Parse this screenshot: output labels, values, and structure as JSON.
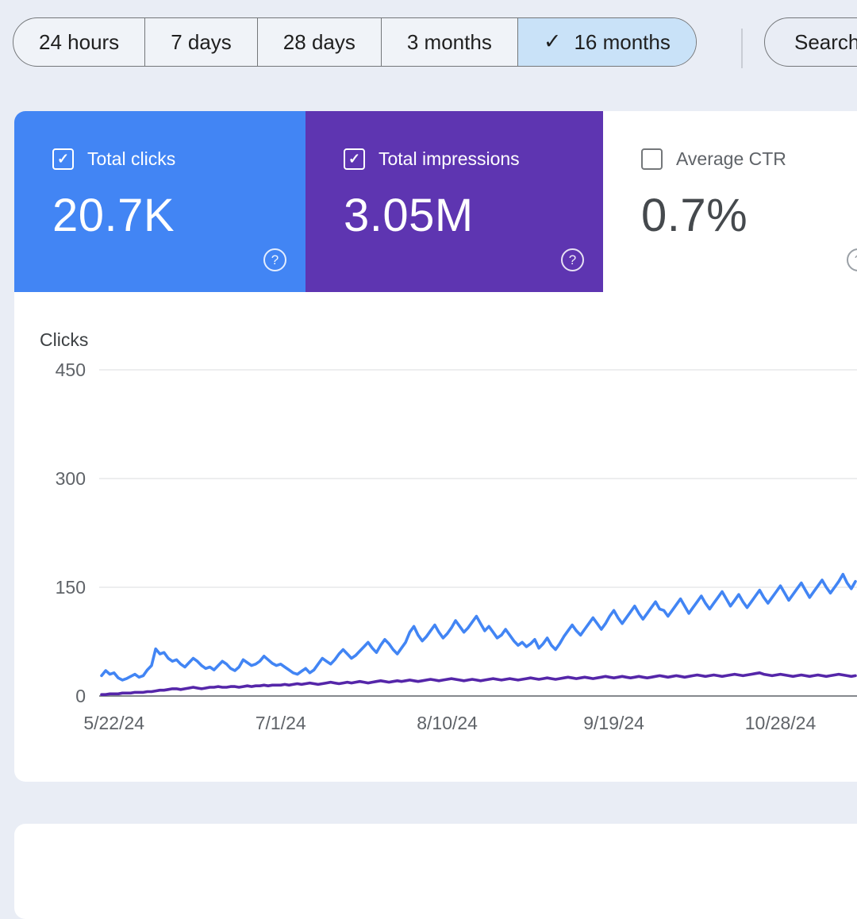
{
  "icons": {
    "check": "✓",
    "help": "?"
  },
  "colors": {
    "page_background": "#e9edf5",
    "selected_tab_bg": "#c9e2f8",
    "clicks_blue": "#4285f4",
    "impressions_purple": "#5e35b1",
    "line_blue": "#4285f4",
    "line_purple": "#5526a9"
  },
  "tabs": {
    "items": [
      {
        "label": "24 hours",
        "selected": false
      },
      {
        "label": "7 days",
        "selected": false
      },
      {
        "label": "28 days",
        "selected": false
      },
      {
        "label": "3 months",
        "selected": false
      },
      {
        "label": "16 months",
        "selected": true
      }
    ],
    "search_label": "Search"
  },
  "metrics": {
    "cards": [
      {
        "label": "Total clicks",
        "value": "20.7K",
        "checked": true,
        "color": "#4285f4"
      },
      {
        "label": "Total impressions",
        "value": "3.05M",
        "checked": true,
        "color": "#5e35b1"
      },
      {
        "label": "Average CTR",
        "value": "0.7%",
        "checked": false,
        "color": "#ffffff"
      }
    ]
  },
  "chart_data": {
    "type": "line",
    "ylabel": "Clicks",
    "y_ticks": [
      0,
      150,
      300,
      450
    ],
    "y_axis_range": [
      0,
      450
    ],
    "grid": true,
    "legend_position": "none",
    "x_start_date": "5/19/24",
    "x_interval": "daily",
    "x_tick_labels": [
      "5/22/24",
      "7/1/24",
      "8/10/24",
      "9/19/24",
      "10/28/24"
    ],
    "x_tick_day_indexes": [
      3,
      43,
      83,
      123,
      163
    ],
    "series": [
      {
        "name": "Total clicks",
        "color": "#4285f4",
        "values": [
          28,
          35,
          30,
          32,
          25,
          22,
          24,
          27,
          30,
          26,
          28,
          36,
          42,
          65,
          58,
          60,
          52,
          48,
          50,
          44,
          40,
          46,
          52,
          48,
          42,
          38,
          40,
          36,
          42,
          48,
          44,
          38,
          35,
          40,
          50,
          46,
          42,
          44,
          48,
          55,
          50,
          45,
          42,
          44,
          40,
          36,
          32,
          30,
          34,
          38,
          32,
          36,
          44,
          52,
          48,
          44,
          50,
          58,
          64,
          58,
          52,
          56,
          62,
          68,
          74,
          66,
          60,
          70,
          78,
          72,
          64,
          58,
          66,
          74,
          88,
          96,
          84,
          76,
          82,
          90,
          98,
          88,
          80,
          86,
          94,
          104,
          96,
          88,
          94,
          102,
          110,
          100,
          90,
          96,
          88,
          80,
          84,
          92,
          84,
          76,
          70,
          74,
          68,
          72,
          78,
          66,
          72,
          80,
          70,
          64,
          72,
          82,
          90,
          98,
          90,
          84,
          92,
          100,
          108,
          100,
          92,
          100,
          110,
          118,
          108,
          100,
          108,
          116,
          124,
          114,
          106,
          114,
          122,
          130,
          120,
          118,
          110,
          118,
          126,
          134,
          124,
          114,
          122,
          130,
          138,
          128,
          120,
          128,
          136,
          144,
          134,
          124,
          132,
          140,
          130,
          122,
          130,
          138,
          146,
          136,
          128,
          136,
          144,
          152,
          142,
          132,
          140,
          148,
          156,
          146,
          136,
          144,
          152,
          160,
          150,
          142,
          150,
          158,
          168,
          156,
          148,
          158
        ]
      },
      {
        "name": "Total impressions (scaled)",
        "color": "#5526a9",
        "values": [
          2,
          2,
          3,
          3,
          3,
          4,
          4,
          4,
          5,
          5,
          5,
          6,
          6,
          7,
          8,
          8,
          9,
          10,
          10,
          9,
          10,
          11,
          12,
          11,
          10,
          11,
          12,
          12,
          13,
          12,
          12,
          13,
          13,
          12,
          13,
          14,
          13,
          14,
          14,
          15,
          14,
          15,
          15,
          15,
          16,
          15,
          16,
          17,
          16,
          17,
          18,
          17,
          16,
          17,
          18,
          19,
          18,
          17,
          18,
          19,
          18,
          19,
          20,
          19,
          18,
          19,
          20,
          21,
          20,
          19,
          20,
          21,
          20,
          21,
          22,
          21,
          20,
          21,
          22,
          23,
          22,
          21,
          22,
          23,
          24,
          23,
          22,
          21,
          22,
          23,
          22,
          21,
          22,
          23,
          24,
          23,
          22,
          23,
          24,
          23,
          22,
          23,
          24,
          25,
          24,
          23,
          24,
          25,
          24,
          23,
          24,
          25,
          26,
          25,
          24,
          25,
          26,
          25,
          24,
          25,
          26,
          27,
          26,
          25,
          26,
          27,
          26,
          25,
          26,
          27,
          26,
          25,
          26,
          27,
          28,
          27,
          26,
          27,
          28,
          27,
          26,
          27,
          28,
          29,
          28,
          27,
          28,
          29,
          28,
          27,
          28,
          29,
          30,
          29,
          28,
          29,
          30,
          31,
          32,
          30,
          29,
          28,
          29,
          30,
          29,
          28,
          27,
          28,
          29,
          28,
          27,
          28,
          29,
          28,
          27,
          28,
          29,
          30,
          29,
          28,
          27,
          28
        ]
      }
    ]
  }
}
